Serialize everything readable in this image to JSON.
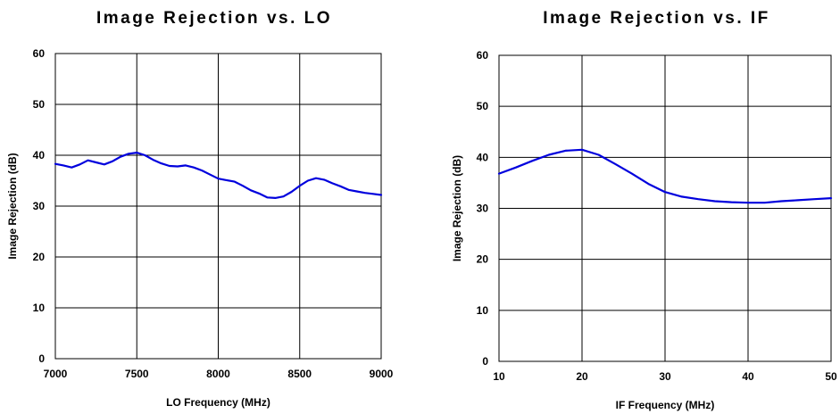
{
  "chart_data": [
    {
      "type": "line",
      "title": "Image Rejection vs. LO",
      "xlabel": "LO Frequency (MHz)",
      "ylabel": "Image Rejection (dB)",
      "xlim": [
        7000,
        9000
      ],
      "ylim": [
        0,
        60
      ],
      "x_ticks": [
        7000,
        7500,
        8000,
        8500,
        9000
      ],
      "y_ticks": [
        0,
        10,
        20,
        30,
        40,
        50,
        60
      ],
      "grid": true,
      "line_color": "#0000dd",
      "series": [
        {
          "x": [
            7000,
            7050,
            7100,
            7150,
            7200,
            7250,
            7300,
            7350,
            7400,
            7450,
            7500,
            7550,
            7600,
            7650,
            7700,
            7750,
            7800,
            7850,
            7900,
            7950,
            8000,
            8050,
            8100,
            8150,
            8200,
            8250,
            8300,
            8350,
            8400,
            8450,
            8500,
            8550,
            8600,
            8650,
            8700,
            8750,
            8800,
            8850,
            8900,
            8950,
            9000
          ],
          "y": [
            38.3,
            38.0,
            37.6,
            38.2,
            39.0,
            38.6,
            38.2,
            38.8,
            39.7,
            40.3,
            40.5,
            40.0,
            39.1,
            38.4,
            37.9,
            37.8,
            38.0,
            37.6,
            37.0,
            36.2,
            35.4,
            35.1,
            34.8,
            34.0,
            33.1,
            32.5,
            31.7,
            31.6,
            31.9,
            32.8,
            34.0,
            35.0,
            35.5,
            35.2,
            34.5,
            33.9,
            33.2,
            32.9,
            32.6,
            32.4,
            32.2
          ]
        }
      ]
    },
    {
      "type": "line",
      "title": "Image Rejection vs. IF",
      "xlabel": "IF Frequency (MHz)",
      "ylabel": "Image Rejection (dB)",
      "xlim": [
        10,
        50
      ],
      "ylim": [
        0,
        60
      ],
      "x_ticks": [
        10,
        20,
        30,
        40,
        50
      ],
      "y_ticks": [
        0,
        10,
        20,
        30,
        40,
        50,
        60
      ],
      "grid": true,
      "line_color": "#0000dd",
      "series": [
        {
          "x": [
            10,
            12,
            14,
            16,
            18,
            20,
            22,
            24,
            26,
            28,
            30,
            32,
            34,
            36,
            38,
            40,
            42,
            44,
            46,
            48,
            50
          ],
          "y": [
            36.8,
            38.0,
            39.3,
            40.5,
            41.3,
            41.5,
            40.5,
            38.7,
            36.8,
            34.8,
            33.2,
            32.3,
            31.8,
            31.4,
            31.2,
            31.1,
            31.1,
            31.4,
            31.6,
            31.8,
            32.0
          ]
        }
      ]
    }
  ]
}
